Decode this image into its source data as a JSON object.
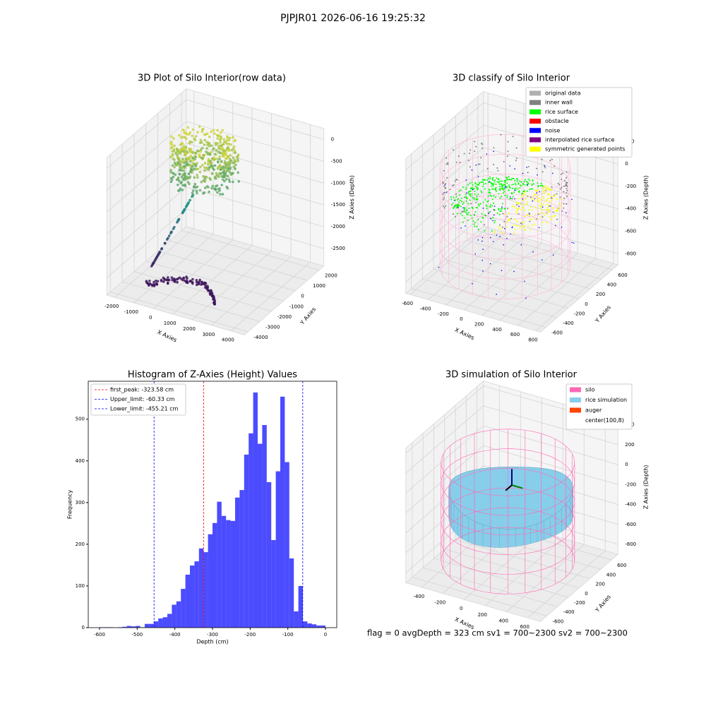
{
  "title": "PJPJR01 2026-06-16 19:25:32",
  "chart_data": [
    {
      "type": "scatter3d",
      "title": "3D Plot of Silo Interior(row data)",
      "xlabel": "X Axies",
      "ylabel": "Y Axies",
      "zlabel": "Z Axies (Depth)",
      "xlim": [
        -2400,
        4700
      ],
      "ylim": [
        -4300,
        2400
      ],
      "zlim": [
        -2900,
        250
      ],
      "xticks": [
        -2000,
        -1000,
        0,
        1000,
        2000,
        3000,
        4000
      ],
      "yticks": [
        -4000,
        -3000,
        -2000,
        -1000,
        0,
        1000,
        2000
      ],
      "zticks": [
        0,
        -500,
        -1000,
        -1500,
        -2000,
        -2500
      ]
    },
    {
      "type": "classify3d",
      "title": "3D classify of Silo Interior",
      "xlabel": "X Axies",
      "ylabel": "Y Axies",
      "zlabel": "Z Axies (Depth)",
      "xlim": [
        -650,
        850
      ],
      "ylim": [
        -700,
        700
      ],
      "zlim": [
        -900,
        300
      ],
      "xticks": [
        -600,
        -400,
        -200,
        0,
        200,
        400,
        600,
        800
      ],
      "yticks": [
        -600,
        -400,
        -200,
        0,
        200,
        400,
        600
      ],
      "zticks": [
        200,
        0,
        -200,
        -400,
        -600,
        -800
      ],
      "legend": [
        {
          "name": "original data",
          "color": "#b0b0b0"
        },
        {
          "name": "inner wall",
          "color": "#808080"
        },
        {
          "name": "rice surface",
          "color": "#00ff00"
        },
        {
          "name": "obstacle",
          "color": "#ff0000"
        },
        {
          "name": "noise",
          "color": "#0000ff"
        },
        {
          "name": "interpolated rice surface",
          "color": "#800080"
        },
        {
          "name": "symmetric generated points",
          "color": "#ffff00"
        }
      ]
    },
    {
      "type": "histogram",
      "title": "Histogram of Z-Axies (Height) Values",
      "xlabel": "Depth (cm)",
      "ylabel": "Frequency",
      "color": "#0000ff",
      "bins": [
        -600,
        -588,
        -576,
        -564,
        -552,
        -540,
        -528,
        -516,
        -504,
        -492,
        -480,
        -468,
        -456,
        -444,
        -432,
        -420,
        -408,
        -396,
        -384,
        -372,
        -360,
        -348,
        -336,
        -324,
        -312,
        -300,
        -288,
        -276,
        -264,
        -252,
        -240,
        -228,
        -216,
        -204,
        -192,
        -180,
        -168,
        -156,
        -144,
        -132,
        -120,
        -108,
        -96,
        -84,
        -72,
        -60,
        -48,
        -36,
        -24,
        -12,
        0
      ],
      "counts": [
        1,
        1,
        1,
        0,
        1,
        2,
        4,
        3,
        4,
        1,
        9,
        9,
        15,
        22,
        25,
        33,
        55,
        63,
        93,
        127,
        149,
        159,
        190,
        181,
        224,
        251,
        302,
        268,
        258,
        256,
        312,
        330,
        415,
        466,
        564,
        441,
        486,
        349,
        210,
        375,
        554,
        397,
        166,
        39,
        100,
        15,
        10,
        8,
        5,
        5
      ],
      "xlim": [
        -630,
        30
      ],
      "ylim": [
        0,
        591
      ],
      "xticks": [
        -600,
        -500,
        -400,
        -300,
        -200,
        -100,
        0
      ],
      "yticks": [
        0,
        100,
        200,
        300,
        400,
        500
      ],
      "vlines": [
        {
          "name": "first_peak: -323.58 cm",
          "value": -323.58,
          "color": "#ff0000"
        },
        {
          "name": "Upper_limit: -60.33 cm",
          "value": -60.33,
          "color": "#0000ff"
        },
        {
          "name": "Lower_limit: -455.21 cm",
          "value": -455.21,
          "color": "#0000ff"
        }
      ],
      "legend_loc": "upper left"
    },
    {
      "type": "surface3d",
      "title": "3D simulation of Silo Interior",
      "xlabel": "X Axies",
      "ylabel": "Y Axies",
      "zlabel": "Z Axies (Depth)",
      "xlim": [
        -550,
        720
      ],
      "ylim": [
        -720,
        720
      ],
      "zlim": [
        -900,
        450
      ],
      "xticks": [
        -400,
        -200,
        0,
        200,
        400,
        600
      ],
      "yticks": [
        -600,
        -400,
        -200,
        0,
        200,
        400,
        600
      ],
      "zticks": [
        400,
        200,
        0,
        -200,
        -400,
        -600,
        -800
      ],
      "legend": [
        {
          "name": "silo",
          "color": "#ff69b4"
        },
        {
          "name": "rice simulation",
          "color": "#87ceeb"
        },
        {
          "name": "auger",
          "color": "#ff4500"
        },
        {
          "name": "center(100,8)",
          "color": "#ffffff"
        }
      ],
      "annotation": "flag = 0     avgDepth = 323 cm  sv1 = 700~2300  sv2 = 700~2300"
    }
  ]
}
